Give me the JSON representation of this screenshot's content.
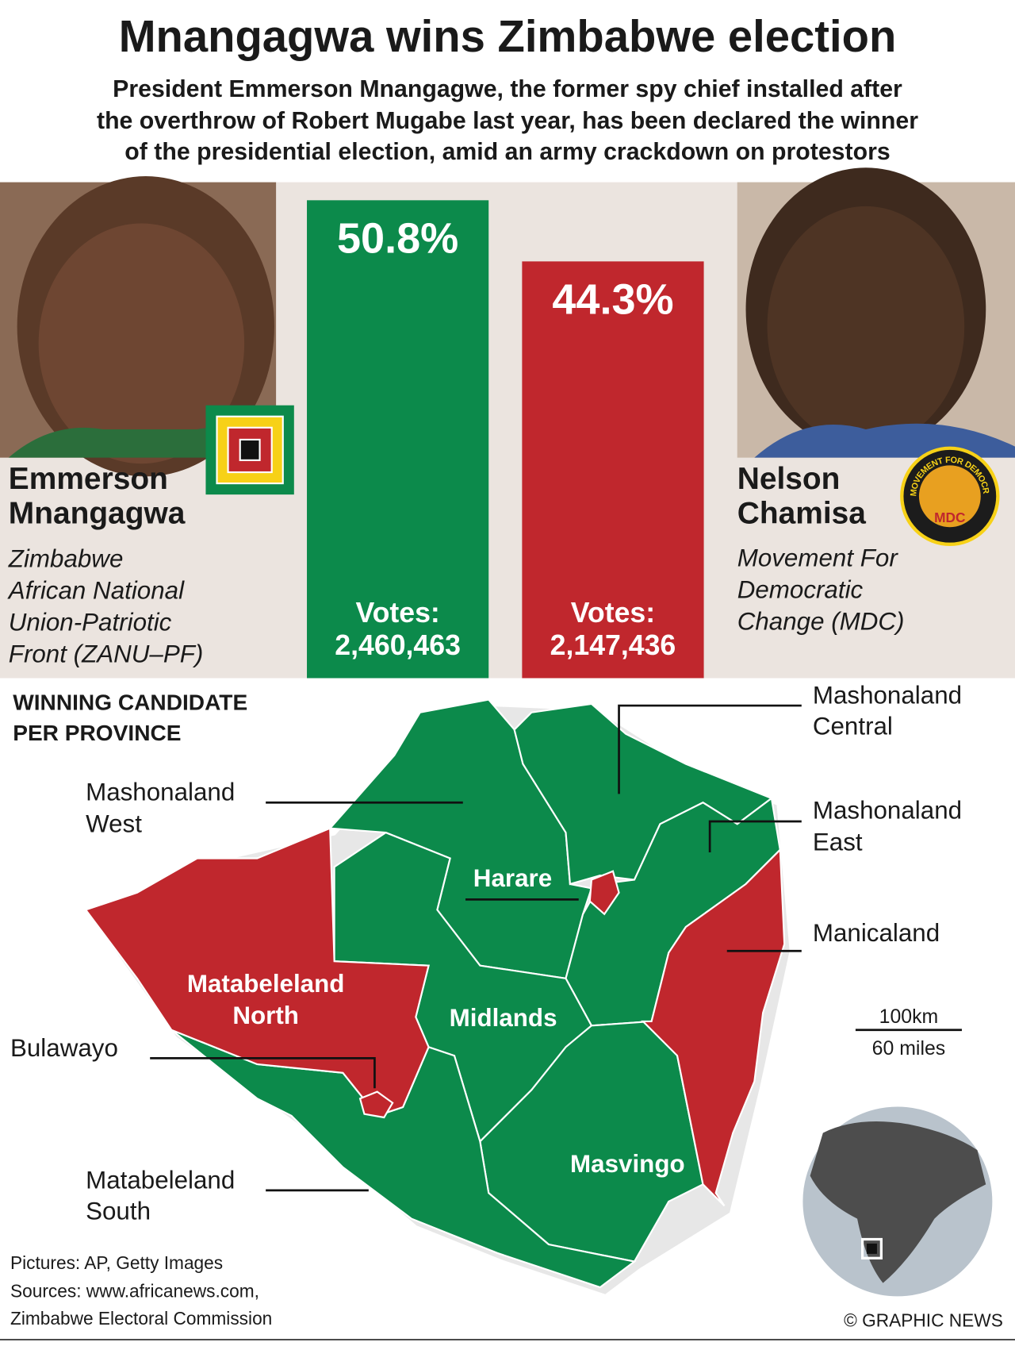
{
  "header": {
    "title": "Mnangagwa wins Zimbabwe election",
    "subtitle_lines": [
      "President Emmerson Mnangagwe, the former spy chief installed after",
      "the overthrow of Robert Mugabe last year, has been declared the winner",
      "of the presidential election, amid an army crackdown on protestors"
    ]
  },
  "chart_data": {
    "type": "bar",
    "values": [
      50.8,
      44.3
    ],
    "value_labels": [
      "50.8%",
      "44.3%"
    ],
    "colors": [
      "#0c8a4b",
      "#c0272d"
    ],
    "votes_label": "Votes:",
    "votes": [
      "2,460,463",
      "2,147,436"
    ]
  },
  "candidates": [
    {
      "name_lines": [
        "Emmerson",
        "Mnangagwa"
      ],
      "party_lines": [
        "Zimbabwe",
        "African National",
        "Union-Patriotic",
        "Front (ZANU–PF)"
      ]
    },
    {
      "name_lines": [
        "Nelson",
        "Chamisa"
      ],
      "party_lines": [
        "Movement For",
        "Democratic",
        "Change (MDC)"
      ]
    }
  ],
  "logo": {
    "ring_text": "MOVEMENT FOR DEMOCRATIC CHANGE",
    "abbr": "MDC"
  },
  "map": {
    "heading_lines": [
      "WINNING CANDIDATE",
      "PER PROVINCE"
    ],
    "labels": {
      "mashonaland_central": [
        "Mashonaland",
        "Central"
      ],
      "mashonaland_west": [
        "Mashonaland",
        "West"
      ],
      "mashonaland_east": [
        "Mashonaland",
        "East"
      ],
      "harare": "Harare",
      "manicaland": "Manicaland",
      "matabeleland_north": [
        "Matabeleland",
        "North"
      ],
      "midlands": "Midlands",
      "bulawayo": "Bulawayo",
      "masvingo": "Masvingo",
      "matabeleland_south": [
        "Matabeleland",
        "South"
      ]
    },
    "scale": [
      "100km",
      "60 miles"
    ]
  },
  "footer": {
    "pictures": "Pictures: AP, Getty Images",
    "sources_lines": [
      "Sources: www.africanews.com,",
      "Zimbabwe Electoral Commission"
    ],
    "credit": "© GRAPHIC NEWS"
  }
}
